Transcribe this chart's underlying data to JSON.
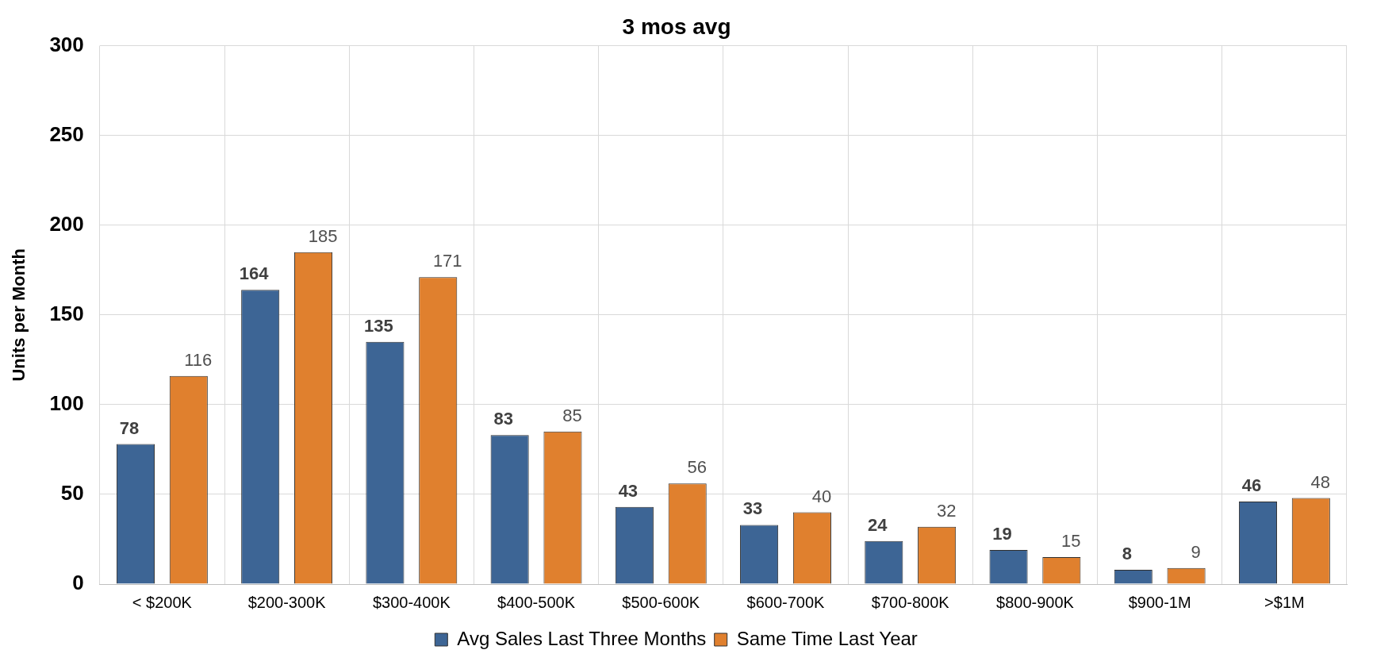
{
  "chart_data": {
    "type": "bar",
    "title": "3 mos avg",
    "ylabel": "Units per Month",
    "categories": [
      "< $200K",
      "$200-300K",
      "$300-400K",
      "$400-500K",
      "$500-600K",
      "$600-700K",
      "$700-800K",
      "$800-900K",
      "$900-1M",
      ">$1M"
    ],
    "series": [
      {
        "name": "Avg Sales Last Three Months",
        "color": "#3d6595",
        "values": [
          78,
          164,
          135,
          83,
          43,
          33,
          24,
          19,
          8,
          46
        ]
      },
      {
        "name": "Same Time Last Year",
        "color": "#e0802e",
        "values": [
          116,
          185,
          171,
          85,
          56,
          40,
          32,
          15,
          9,
          48
        ]
      }
    ],
    "ylim": [
      0,
      300
    ],
    "yticks": [
      0,
      50,
      100,
      150,
      200,
      250,
      300
    ],
    "grid": true,
    "legend": "bottom",
    "data_labels": true
  }
}
